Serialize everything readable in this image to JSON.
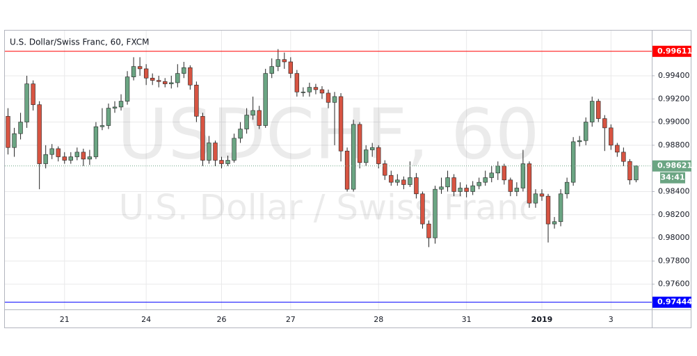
{
  "chart_data": {
    "type": "candlestick",
    "title": "U.S. Dollar/Swiss Franc, 60, FXCM",
    "watermark": "USDCHF, 60",
    "watermark_subtitle": "U.S. Dollar / Swiss Franc",
    "categories": [
      null,
      null,
      null,
      null,
      null,
      null,
      null,
      null,
      null,
      "21",
      null,
      null,
      null,
      null,
      null,
      null,
      null,
      null,
      null,
      null,
      null,
      null,
      "24",
      null,
      null,
      null,
      null,
      null,
      null,
      null,
      null,
      null,
      null,
      null,
      "26",
      null,
      null,
      null,
      null,
      null,
      null,
      null,
      null,
      null,
      null,
      "27",
      null,
      null,
      null,
      null,
      null,
      null,
      null,
      null,
      null,
      null,
      null,
      null,
      null,
      "28",
      null,
      null,
      null,
      null,
      null,
      null,
      null,
      null,
      null,
      null,
      null,
      null,
      null,
      "31",
      null,
      null,
      null,
      null,
      null,
      null,
      null,
      null,
      null,
      null,
      null,
      "2019",
      null,
      null,
      null,
      null,
      null,
      null,
      null,
      null,
      null,
      null,
      "3",
      null,
      null,
      null,
      null
    ],
    "open": [
      0.9905,
      0.9878,
      0.989,
      0.99,
      0.9933,
      0.9915,
      0.9864,
      0.9872,
      0.9877,
      0.987,
      0.9867,
      0.987,
      0.9874,
      0.9868,
      0.987,
      0.9896,
      0.9897,
      0.9912,
      0.9913,
      0.9918,
      0.9939,
      0.9948,
      0.9946,
      0.9938,
      0.9936,
      0.9935,
      0.9933,
      0.9934,
      0.9942,
      0.9947,
      0.9932,
      0.9905,
      0.9867,
      0.9882,
      0.9867,
      0.9864,
      0.9867,
      0.9886,
      0.9894,
      0.9906,
      0.991,
      0.9897,
      0.9942,
      0.9948,
      0.9954,
      0.9952,
      0.9942,
      0.9926,
      0.9926,
      0.993,
      0.9928,
      0.9925,
      0.9917,
      0.9922,
      0.9875,
      0.9842,
      0.9898,
      0.9865,
      0.9876,
      0.9878,
      0.9864,
      0.9854,
      0.9848,
      0.985,
      0.9846,
      0.9852,
      0.9838,
      0.9812,
      0.98,
      0.9842,
      0.9844,
      0.9852,
      0.984,
      0.9843,
      0.984,
      0.9845,
      0.9848,
      0.9852,
      0.9856,
      0.9862,
      0.985,
      0.984,
      0.9843,
      0.9864,
      0.983,
      0.9838,
      0.9836,
      0.9812,
      0.9814,
      0.9838,
      0.9848,
      0.9883,
      0.9884,
      0.99,
      0.9918,
      0.9903,
      0.9895,
      0.988,
      0.9874,
      0.9866,
      0.985
    ],
    "high": [
      0.9912,
      0.9895,
      0.9908,
      0.994,
      0.9936,
      0.9918,
      0.988,
      0.9881,
      0.9879,
      0.9874,
      0.9874,
      0.9878,
      0.9877,
      0.9876,
      0.99,
      0.9912,
      0.9916,
      0.9918,
      0.9924,
      0.9944,
      0.9956,
      0.9956,
      0.995,
      0.9942,
      0.994,
      0.9938,
      0.994,
      0.995,
      0.9952,
      0.9949,
      0.9935,
      0.9908,
      0.9888,
      0.9884,
      0.987,
      0.9871,
      0.989,
      0.99,
      0.9912,
      0.9922,
      0.9914,
      0.9946,
      0.9955,
      0.9963,
      0.996,
      0.9956,
      0.9945,
      0.993,
      0.9934,
      0.9933,
      0.9931,
      0.9928,
      0.9926,
      0.9925,
      0.9878,
      0.9902,
      0.99,
      0.988,
      0.9882,
      0.988,
      0.9867,
      0.9858,
      0.9855,
      0.9853,
      0.9866,
      0.9856,
      0.984,
      0.9815,
      0.9845,
      0.9852,
      0.9858,
      0.9855,
      0.9848,
      0.9846,
      0.9849,
      0.9852,
      0.9858,
      0.9862,
      0.9866,
      0.9864,
      0.9852,
      0.9848,
      0.9876,
      0.9866,
      0.9842,
      0.9842,
      0.9838,
      0.9818,
      0.9842,
      0.9852,
      0.9887,
      0.9888,
      0.9904,
      0.9922,
      0.992,
      0.9906,
      0.9898,
      0.9882,
      0.9878,
      0.9868,
      0.98625
    ],
    "low": [
      0.9872,
      0.987,
      0.9885,
      0.9895,
      0.991,
      0.9842,
      0.986,
      0.9868,
      0.9866,
      0.9864,
      0.9864,
      0.9867,
      0.9862,
      0.9863,
      0.9868,
      0.9893,
      0.9894,
      0.9908,
      0.991,
      0.9915,
      0.9936,
      0.994,
      0.9932,
      0.9932,
      0.993,
      0.993,
      0.9929,
      0.993,
      0.9938,
      0.9928,
      0.99,
      0.9862,
      0.9864,
      0.9862,
      0.986,
      0.9862,
      0.9865,
      0.9882,
      0.989,
      0.9902,
      0.9894,
      0.9895,
      0.9938,
      0.9944,
      0.9946,
      0.9938,
      0.9922,
      0.9922,
      0.9922,
      0.9924,
      0.992,
      0.9912,
      0.988,
      0.9866,
      0.984,
      0.984,
      0.986,
      0.9862,
      0.987,
      0.986,
      0.985,
      0.9845,
      0.9845,
      0.9842,
      0.9844,
      0.9834,
      0.9808,
      0.9792,
      0.9795,
      0.9838,
      0.984,
      0.9836,
      0.9836,
      0.9835,
      0.9837,
      0.9842,
      0.9845,
      0.9848,
      0.985,
      0.9846,
      0.9836,
      0.9836,
      0.984,
      0.9826,
      0.9826,
      0.9832,
      0.9796,
      0.9808,
      0.981,
      0.9834,
      0.9845,
      0.9879,
      0.988,
      0.9896,
      0.99,
      0.9875,
      0.9876,
      0.987,
      0.9862,
      0.9846,
      0.9848
    ],
    "close": [
      0.9878,
      0.989,
      0.99,
      0.9933,
      0.9915,
      0.9864,
      0.9872,
      0.9877,
      0.987,
      0.9867,
      0.987,
      0.9874,
      0.9868,
      0.987,
      0.9896,
      0.9897,
      0.9912,
      0.9913,
      0.9918,
      0.9939,
      0.9948,
      0.9946,
      0.9938,
      0.9936,
      0.9935,
      0.9933,
      0.9934,
      0.9942,
      0.9947,
      0.9932,
      0.9905,
      0.9867,
      0.9882,
      0.9867,
      0.9864,
      0.9867,
      0.9886,
      0.9894,
      0.9906,
      0.991,
      0.9897,
      0.9942,
      0.9948,
      0.9954,
      0.9952,
      0.9942,
      0.9926,
      0.9926,
      0.993,
      0.9928,
      0.9925,
      0.9917,
      0.9922,
      0.9875,
      0.9842,
      0.9898,
      0.9865,
      0.9876,
      0.9878,
      0.9864,
      0.9854,
      0.9848,
      0.985,
      0.9846,
      0.9852,
      0.9838,
      0.9812,
      0.98,
      0.9842,
      0.9844,
      0.9852,
      0.984,
      0.9843,
      0.984,
      0.9845,
      0.9848,
      0.9852,
      0.9856,
      0.9862,
      0.985,
      0.984,
      0.9843,
      0.9864,
      0.983,
      0.9838,
      0.9836,
      0.9812,
      0.9814,
      0.9838,
      0.9848,
      0.9883,
      0.9884,
      0.99,
      0.9918,
      0.9903,
      0.9895,
      0.988,
      0.9874,
      0.9866,
      0.985,
      0.98621
    ],
    "up_color": "#6ba583",
    "down_color": "#d75442",
    "ylim": [
      0.97382,
      0.9979
    ],
    "yticks": [
      {
        "value": 0.976,
        "label": "0.97600"
      },
      {
        "value": 0.978,
        "label": "0.97800"
      },
      {
        "value": 0.98,
        "label": "0.98000"
      },
      {
        "value": 0.982,
        "label": "0.98200"
      },
      {
        "value": 0.984,
        "label": "0.98400"
      },
      {
        "value": 0.988,
        "label": "0.98800"
      },
      {
        "value": 0.99,
        "label": "0.99000"
      },
      {
        "value": 0.992,
        "label": "0.99200"
      },
      {
        "value": 0.994,
        "label": "0.99400"
      }
    ],
    "grid": true,
    "lines": [
      {
        "value": 0.99611,
        "label": "0.99611",
        "color": "#ff0000"
      },
      {
        "value": 0.97444,
        "label": "0.97444",
        "color": "#0000ff"
      }
    ],
    "last_price": {
      "value": 0.98621,
      "label": "0.98621",
      "countdown": "34:41",
      "color": "#6ba583"
    }
  }
}
